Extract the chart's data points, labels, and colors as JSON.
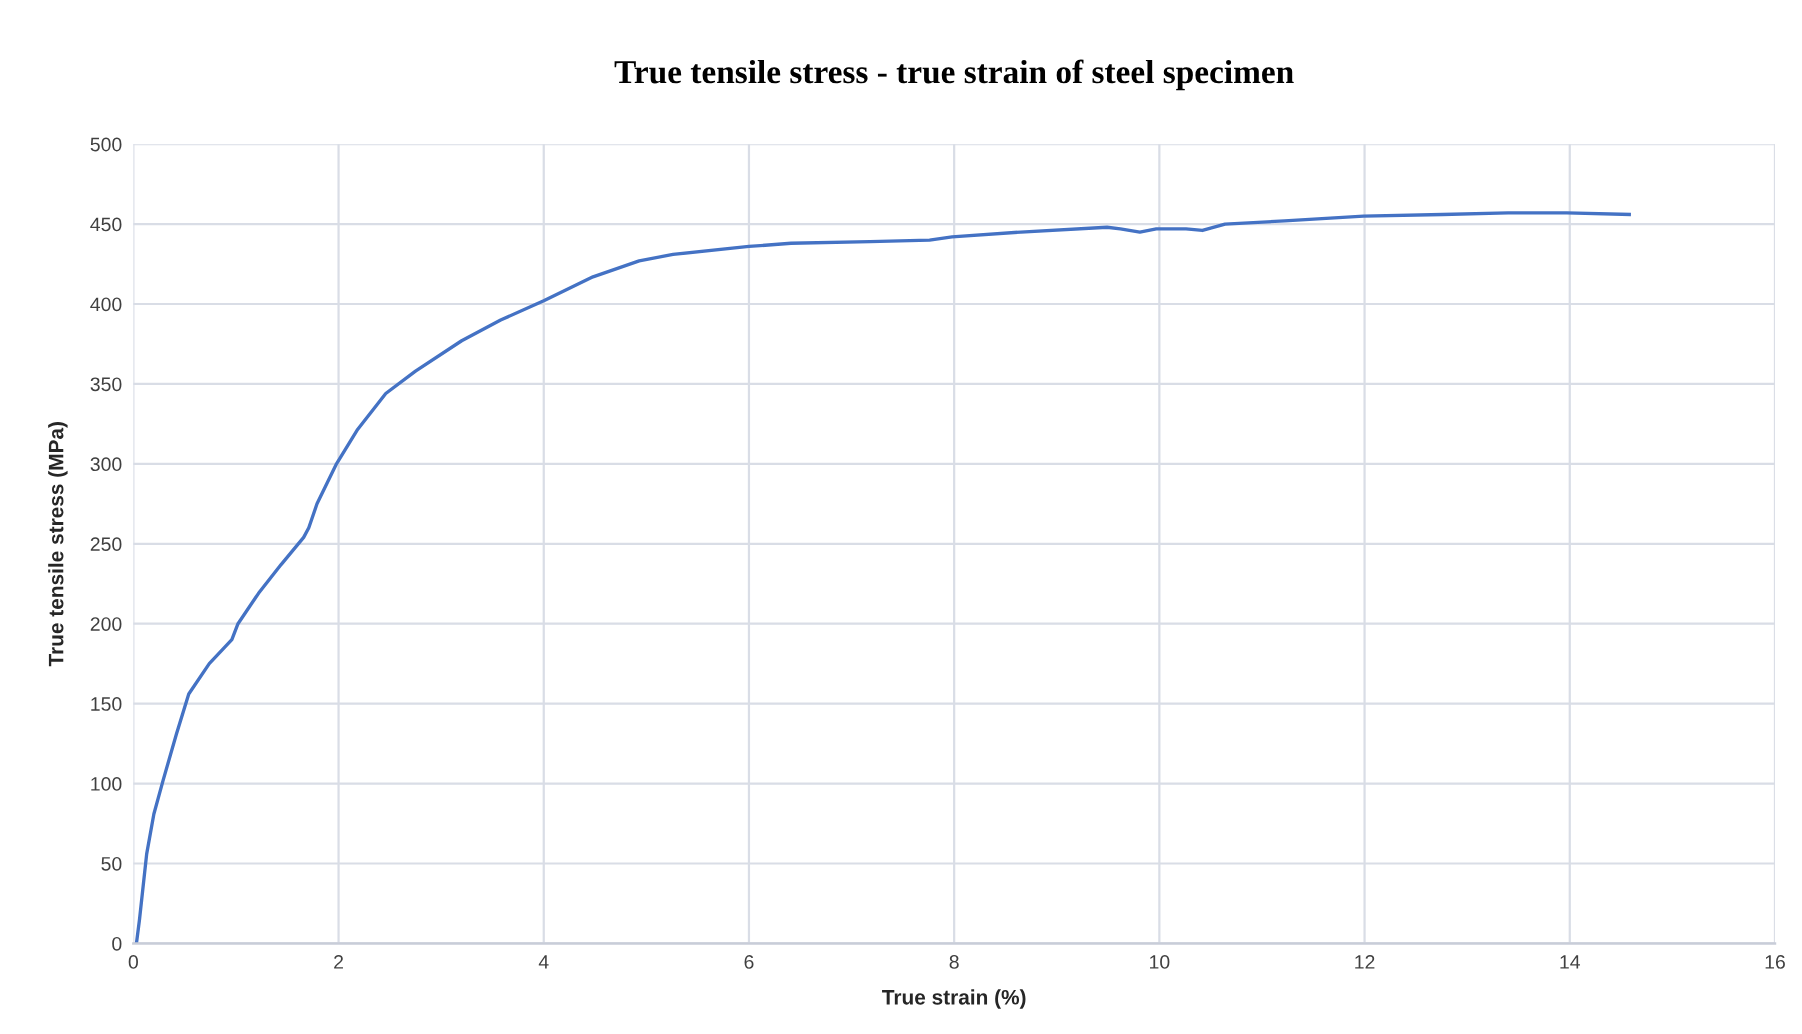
{
  "chart_data": {
    "type": "line",
    "title": "True tensile stress - true strain of steel specimen",
    "xlabel": "True strain (%)",
    "ylabel": "True tensile stress (MPa)",
    "x": [
      0.03,
      0.06,
      0.13,
      0.2,
      0.29,
      0.42,
      0.54,
      0.74,
      0.96,
      1.02,
      1.22,
      1.44,
      1.66,
      1.71,
      1.79,
      1.98,
      2.18,
      2.46,
      2.75,
      3.2,
      3.58,
      4.0,
      4.48,
      4.93,
      5.26,
      6.0,
      6.41,
      7.18,
      7.76,
      7.98,
      8.65,
      9.49,
      9.62,
      9.81,
      9.97,
      10.26,
      10.42,
      10.64,
      11.22,
      11.99,
      12.76,
      13.4,
      13.97,
      14.58
    ],
    "series": [
      {
        "color": "#4472c4",
        "values": [
          0,
          15,
          56,
          81,
          102,
          131,
          156,
          175,
          190,
          200,
          219,
          237,
          254,
          260,
          275,
          300,
          321,
          344,
          358,
          377,
          390,
          402,
          417,
          427,
          431,
          436,
          438,
          439,
          440,
          442,
          445,
          448,
          447,
          445,
          447,
          447,
          446,
          450,
          452,
          455,
          456,
          457,
          457,
          456
        ]
      }
    ],
    "xlim": [
      0,
      16
    ],
    "xticks": [
      0,
      2,
      4,
      6,
      8,
      10,
      12,
      14,
      16
    ],
    "ylim": [
      0,
      500
    ],
    "yticks": [
      0,
      50,
      100,
      150,
      200,
      250,
      300,
      350,
      400,
      450,
      500
    ],
    "grid": true,
    "marker": "none",
    "line_style": "solid"
  }
}
